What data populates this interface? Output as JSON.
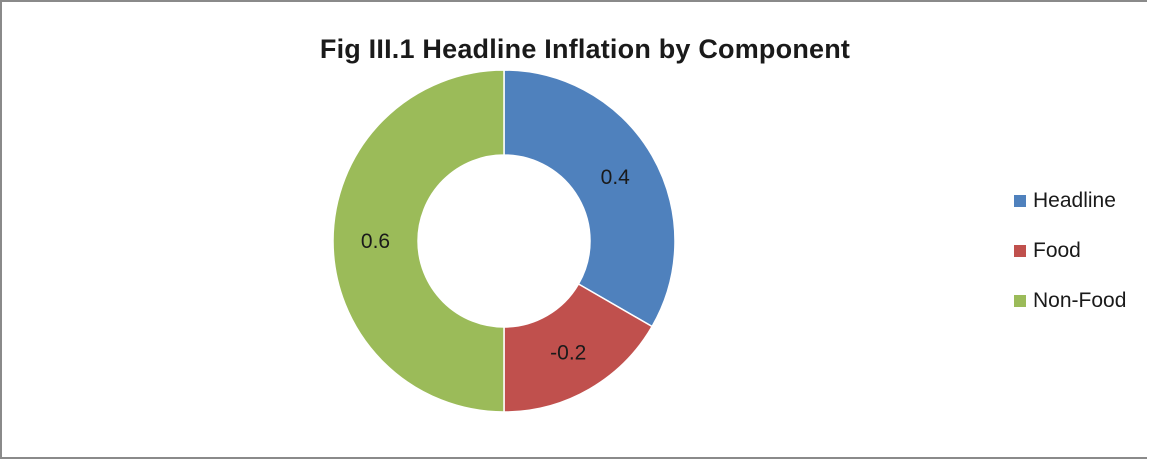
{
  "chart_data": {
    "type": "donut",
    "title": "Fig III.1 Headline Inflation by Component",
    "categories": [
      "Headline",
      "Food",
      "Non-Food"
    ],
    "values": [
      0.4,
      -0.2,
      0.6
    ],
    "display_magnitudes": [
      0.4,
      0.2,
      0.6
    ],
    "colors": [
      "#4f81bd",
      "#c0504d",
      "#9bbb59"
    ],
    "legend_position": "right"
  }
}
